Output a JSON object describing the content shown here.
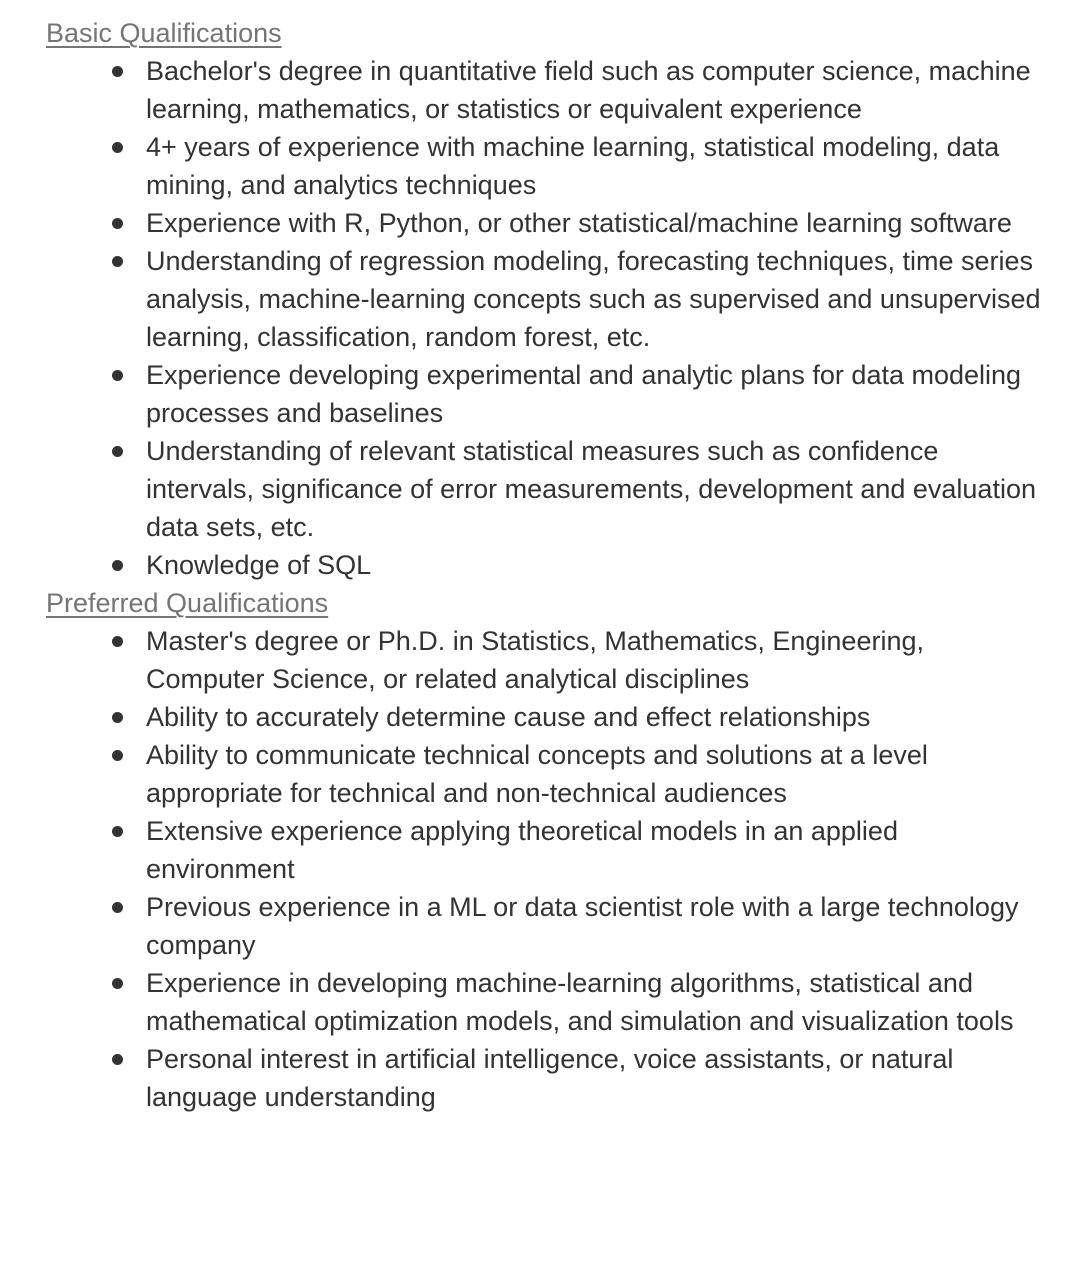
{
  "basic": {
    "heading": "Basic Qualifications",
    "items": [
      "Bachelor's degree in quantitative field such as computer science, machine learning, mathematics, or statistics or equivalent experience",
      "4+ years of experience with machine learning, statistical modeling, data mining, and analytics techniques",
      "Experience with R, Python, or other statistical/machine learning software",
      "Understanding of regression modeling, forecasting techniques, time series analysis, machine-learning concepts such as supervised and unsupervised learning, classification, random forest, etc.",
      "Experience developing experimental and analytic plans for data modeling processes and baselines",
      "Understanding of relevant statistical measures such as confidence intervals, significance of error measurements, development and evaluation data sets, etc.",
      "Knowledge of SQL"
    ]
  },
  "preferred": {
    "heading": "Preferred Qualifications",
    "items": [
      "Master's degree or Ph.D. in Statistics, Mathematics, Engineering, Computer Science, or related analytical disciplines",
      "Ability to accurately determine cause and effect relationships",
      "Ability to communicate technical concepts and solutions at a level appropriate for technical and non-technical audiences",
      "Extensive experience applying theoretical models in an applied environment",
      "Previous experience in a ML or data scientist role with a large technology company",
      "Experience in developing machine-learning algorithms, statistical and mathematical optimization models, and simulation and visualization tools",
      "Personal interest in artificial intelligence, voice assistants, or natural language understanding"
    ]
  }
}
